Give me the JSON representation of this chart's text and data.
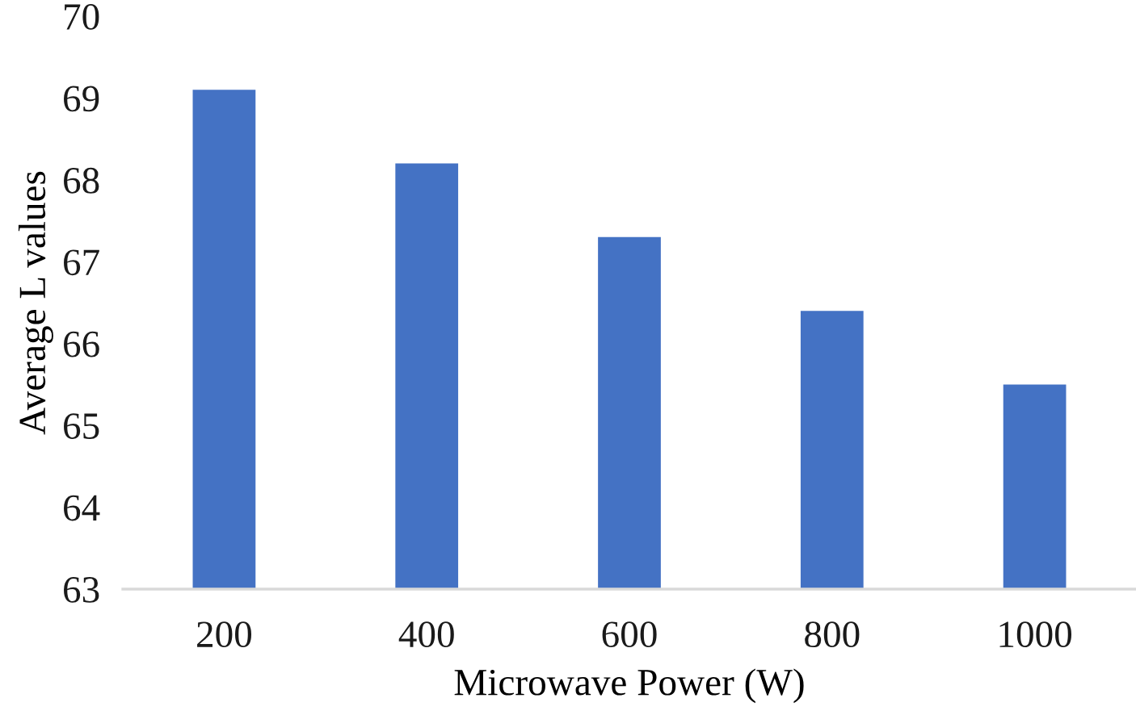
{
  "chart_data": {
    "type": "bar",
    "xlabel": "Microwave Power (W)",
    "ylabel": "Average L values",
    "categories": [
      "200",
      "400",
      "600",
      "800",
      "1000"
    ],
    "values": [
      69.1,
      68.2,
      67.3,
      66.4,
      65.5
    ],
    "color": "#4472c4",
    "ylim": [
      63,
      70
    ],
    "yticks": [
      63,
      64,
      65,
      66,
      67,
      68,
      69,
      70
    ],
    "grid": false
  }
}
